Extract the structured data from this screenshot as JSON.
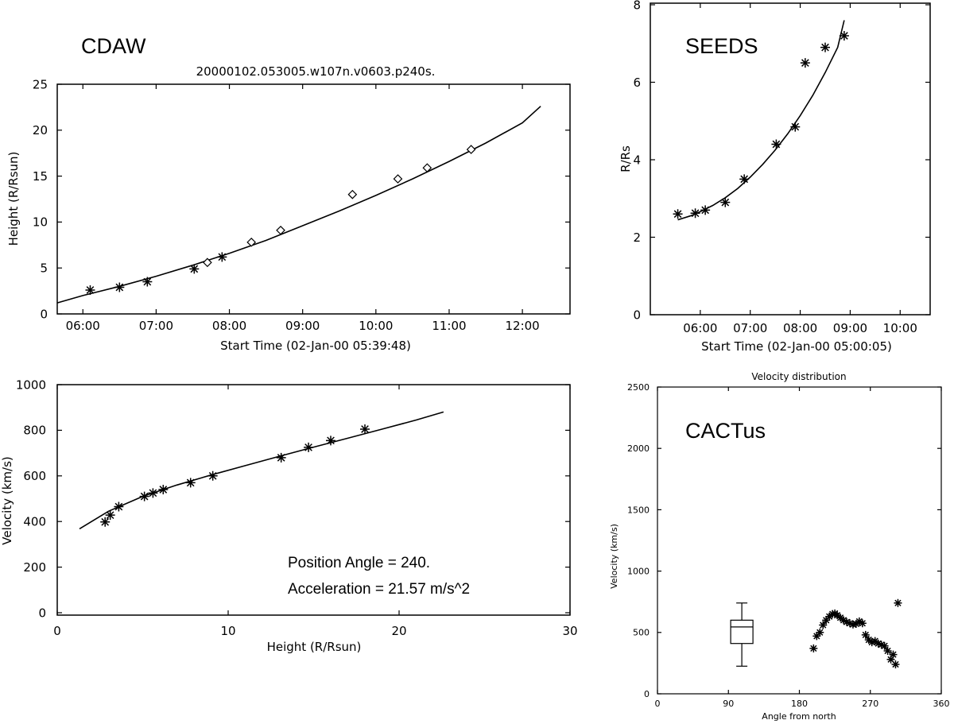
{
  "chart_data": [
    {
      "id": "cdaw_height",
      "type": "scatter",
      "label": "CDAW",
      "title": "20000102.053005.w107n.v0603.p240s.",
      "xlabel": "Start Time (02-Jan-00 05:39:48)",
      "ylabel": "Height (R/Rsun)",
      "x_unit": "hours (time of day, 02-Jan-00)",
      "xlim": [
        5.65,
        12.65
      ],
      "ylim": [
        0,
        25
      ],
      "x_ticks": [
        6,
        7,
        8,
        9,
        10,
        11,
        12
      ],
      "x_tick_labels": [
        "06:00",
        "07:00",
        "08:00",
        "09:00",
        "10:00",
        "11:00",
        "12:00"
      ],
      "y_ticks": [
        0,
        5,
        10,
        15,
        20,
        25
      ],
      "y_tick_labels": [
        "0",
        "5",
        "10",
        "15",
        "20",
        "25"
      ],
      "series": [
        {
          "marker": "asterisk",
          "x": [
            6.1,
            6.5,
            6.88,
            7.52,
            7.9
          ],
          "y": [
            2.6,
            2.9,
            3.5,
            4.9,
            6.2
          ]
        },
        {
          "marker": "diamond",
          "x": [
            7.7,
            8.3,
            8.7,
            9.68,
            10.3,
            10.7,
            11.3
          ],
          "y": [
            5.6,
            7.8,
            9.1,
            13.0,
            14.7,
            15.9,
            17.9
          ]
        },
        {
          "marker": "line",
          "x": [
            5.65,
            6.0,
            6.5,
            7.0,
            7.5,
            8.0,
            8.5,
            9.0,
            9.5,
            10.0,
            10.5,
            11.0,
            11.5,
            12.0,
            12.25
          ],
          "y": [
            1.2,
            2.0,
            3.0,
            4.1,
            5.3,
            6.6,
            8.0,
            9.6,
            11.2,
            12.9,
            14.7,
            16.6,
            18.6,
            20.8,
            22.6
          ]
        }
      ]
    },
    {
      "id": "cdaw_velocity",
      "type": "scatter",
      "xlabel": "Height (R/Rsun)",
      "ylabel": "Velocity (km/s)",
      "xlim": [
        0,
        30
      ],
      "ylim": [
        0,
        1000
      ],
      "x_ticks": [
        0,
        10,
        20,
        30
      ],
      "x_tick_labels": [
        "0",
        "10",
        "20",
        "30"
      ],
      "y_ticks": [
        0,
        200,
        400,
        600,
        800,
        1000
      ],
      "y_tick_labels": [
        "0",
        "200",
        "400",
        "600",
        "800",
        "1000"
      ],
      "annotations": [
        "Position Angle =  240.",
        "Acceleration =   21.57 m/s^2"
      ],
      "series": [
        {
          "marker": "asterisk",
          "x": [
            2.8,
            3.1,
            3.6,
            5.1,
            5.6,
            6.2,
            7.8,
            9.1,
            13.1,
            14.7,
            16.0,
            18.0
          ],
          "y": [
            398,
            428,
            465,
            510,
            525,
            540,
            570,
            600,
            680,
            725,
            755,
            805
          ]
        },
        {
          "marker": "line",
          "x": [
            1.3,
            3,
            5,
            7,
            9,
            11,
            13,
            15,
            17,
            19,
            21,
            22.6
          ],
          "y": [
            368,
            445,
            510,
            560,
            604,
            645,
            686,
            726,
            765,
            805,
            845,
            880
          ]
        }
      ]
    },
    {
      "id": "seeds_height",
      "type": "scatter",
      "label": "SEEDS",
      "xlabel": "Start Time (02-Jan-00 05:00:05)",
      "ylabel": "R/Rs",
      "x_unit": "hours (time of day, 02-Jan-00)",
      "xlim": [
        5.0,
        10.6
      ],
      "ylim": [
        0,
        8
      ],
      "x_ticks": [
        6,
        7,
        8,
        9,
        10
      ],
      "x_tick_labels": [
        "06:00",
        "07:00",
        "08:00",
        "09:00",
        "10:00"
      ],
      "y_ticks": [
        0,
        2,
        4,
        6,
        8
      ],
      "y_tick_labels": [
        "0",
        "2",
        "4",
        "6",
        "8"
      ],
      "series": [
        {
          "marker": "asterisk",
          "x": [
            5.55,
            5.9,
            6.1,
            6.5,
            6.88,
            7.52,
            7.9,
            8.1,
            8.5,
            8.88
          ],
          "y": [
            2.6,
            2.62,
            2.7,
            2.9,
            3.5,
            4.4,
            4.85,
            6.5,
            6.9,
            7.2
          ]
        },
        {
          "marker": "line",
          "x": [
            5.55,
            5.8,
            6.0,
            6.25,
            6.5,
            6.75,
            7.0,
            7.25,
            7.5,
            7.75,
            8.0,
            8.25,
            8.5,
            8.75,
            8.88
          ],
          "y": [
            2.45,
            2.55,
            2.66,
            2.82,
            3.02,
            3.26,
            3.55,
            3.88,
            4.25,
            4.67,
            5.14,
            5.66,
            6.25,
            6.9,
            7.6
          ]
        }
      ]
    },
    {
      "id": "cactus_velocity",
      "type": "scatter",
      "label": "CACTus",
      "title": "Velocity distribution",
      "xlabel": "Angle from north",
      "ylabel": "Velocity (km/s)",
      "xlim": [
        0,
        360
      ],
      "ylim": [
        0,
        2500
      ],
      "x_ticks": [
        0,
        90,
        180,
        270,
        360
      ],
      "x_tick_labels": [
        "0",
        "90",
        "180",
        "270",
        "360"
      ],
      "y_ticks": [
        0,
        500,
        1000,
        1500,
        2000,
        2500
      ],
      "y_tick_labels": [
        "0",
        "500",
        "1000",
        "1500",
        "2000",
        "2500"
      ],
      "boxplot": {
        "x": 107,
        "min": 225,
        "q1": 410,
        "median": 545,
        "q3": 600,
        "max": 740
      },
      "series": [
        {
          "marker": "asterisk",
          "x": [
            198,
            202,
            206,
            210,
            214,
            218,
            222,
            225,
            228,
            232,
            236,
            240,
            244,
            248,
            252,
            256,
            260,
            264,
            268,
            272,
            276,
            280,
            284,
            288,
            292,
            296,
            299,
            302,
            305
          ],
          "y": [
            370,
            470,
            500,
            560,
            600,
            630,
            650,
            655,
            640,
            620,
            600,
            585,
            575,
            565,
            570,
            590,
            575,
            480,
            440,
            420,
            430,
            410,
            400,
            390,
            350,
            280,
            320,
            240,
            740
          ]
        }
      ]
    }
  ]
}
